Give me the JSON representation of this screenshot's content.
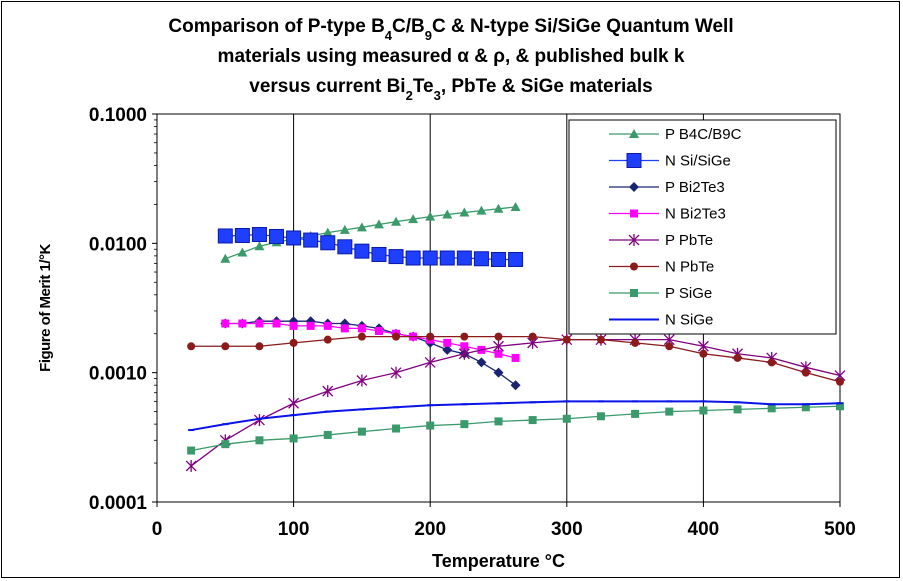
{
  "chart_data": {
    "type": "line",
    "title_lines": [
      "Comparison of P-type B4C/B9C & N-type Si/SiGe Quantum Well",
      "materials using measured α & ρ, & published bulk k",
      "versus current Bi2Te3, PbTe & SiGe materials"
    ],
    "xlabel": "Temperature °C",
    "ylabel": "Figure of Merit 1/°K",
    "xlim": [
      0,
      500
    ],
    "ylim": [
      0.0001,
      0.1
    ],
    "yscale": "log",
    "x_ticks": [
      "0",
      "100",
      "200",
      "300",
      "400",
      "500"
    ],
    "y_ticks": [
      "0.1000",
      "0.0100",
      "0.0010",
      "0.0001"
    ],
    "grid": "vertical",
    "legend_position": "top-right",
    "series": [
      {
        "name": "P B4C/B9C",
        "color": "#3a9a6a",
        "marker": "triangle",
        "x": [
          50,
          62.5,
          75,
          87.5,
          100,
          112.5,
          125,
          137.5,
          150,
          162.5,
          175,
          187.5,
          200,
          212.5,
          225,
          237.5,
          250,
          262.5
        ],
        "y": [
          0.0076,
          0.0085,
          0.0095,
          0.0102,
          0.0108,
          0.0114,
          0.0121,
          0.0127,
          0.0133,
          0.014,
          0.0147,
          0.0154,
          0.0161,
          0.0167,
          0.0173,
          0.0179,
          0.0185,
          0.0191
        ]
      },
      {
        "name": "N Si/SiGe",
        "color": "#1f3fff",
        "marker": "bigsquare",
        "x": [
          50,
          62.5,
          75,
          87.5,
          100,
          112.5,
          125,
          137.5,
          150,
          162.5,
          175,
          187.5,
          200,
          212.5,
          225,
          237.5,
          250,
          262.5
        ],
        "y": [
          0.0114,
          0.0115,
          0.0117,
          0.0113,
          0.011,
          0.0106,
          0.0101,
          0.0094,
          0.0087,
          0.0082,
          0.0079,
          0.0077,
          0.0077,
          0.0077,
          0.0077,
          0.0076,
          0.0075,
          0.0075
        ]
      },
      {
        "name": "P Bi2Te3",
        "color": "#1a2470",
        "marker": "diamond",
        "x": [
          50,
          62.5,
          75,
          87.5,
          100,
          112.5,
          125,
          137.5,
          150,
          162.5,
          175,
          187.5,
          200,
          212.5,
          225,
          237.5,
          250,
          262.5
        ],
        "y": [
          0.0024,
          0.0024,
          0.0025,
          0.0025,
          0.0025,
          0.0025,
          0.0024,
          0.0024,
          0.0023,
          0.0022,
          0.002,
          0.0019,
          0.0017,
          0.0015,
          0.0014,
          0.0012,
          0.001,
          0.0008
        ]
      },
      {
        "name": "N Bi2Te3",
        "color": "#ff00ff",
        "marker": "square",
        "x": [
          50,
          62.5,
          75,
          87.5,
          100,
          112.5,
          125,
          137.5,
          150,
          162.5,
          175,
          187.5,
          200,
          212.5,
          225,
          237.5,
          250,
          262.5
        ],
        "y": [
          0.0024,
          0.0024,
          0.0024,
          0.0024,
          0.0023,
          0.0023,
          0.0023,
          0.0022,
          0.0022,
          0.0021,
          0.002,
          0.0019,
          0.0018,
          0.0017,
          0.0016,
          0.0015,
          0.0014,
          0.0013
        ]
      },
      {
        "name": "P PbTe",
        "color": "#800080",
        "marker": "star",
        "x": [
          25,
          50,
          75,
          100,
          125,
          150,
          175,
          200,
          225,
          250,
          275,
          300,
          325,
          350,
          375,
          400,
          425,
          450,
          475,
          500
        ],
        "y": [
          0.00019,
          0.0003,
          0.00043,
          0.00058,
          0.00072,
          0.00087,
          0.001,
          0.0012,
          0.0014,
          0.0016,
          0.0017,
          0.0018,
          0.0018,
          0.0018,
          0.0018,
          0.0016,
          0.0014,
          0.0013,
          0.0011,
          0.00095
        ]
      },
      {
        "name": "N PbTe",
        "color": "#8b1a1a",
        "marker": "circle",
        "x": [
          25,
          50,
          75,
          100,
          125,
          150,
          175,
          200,
          225,
          250,
          275,
          300,
          325,
          350,
          375,
          400,
          425,
          450,
          475,
          500
        ],
        "y": [
          0.0016,
          0.0016,
          0.0016,
          0.0017,
          0.0018,
          0.0019,
          0.0019,
          0.0019,
          0.0019,
          0.0019,
          0.0019,
          0.0018,
          0.0018,
          0.0017,
          0.0016,
          0.0014,
          0.0013,
          0.0012,
          0.001,
          0.00085
        ]
      },
      {
        "name": "P SiGe",
        "color": "#3a9a6a",
        "marker": "square",
        "x": [
          25,
          50,
          75,
          100,
          125,
          150,
          175,
          200,
          225,
          250,
          275,
          300,
          325,
          350,
          375,
          400,
          425,
          450,
          475,
          500
        ],
        "y": [
          0.00025,
          0.00028,
          0.0003,
          0.00031,
          0.00033,
          0.00035,
          0.00037,
          0.00039,
          0.0004,
          0.00042,
          0.00043,
          0.00044,
          0.00046,
          0.00048,
          0.0005,
          0.00051,
          0.00052,
          0.00053,
          0.00054,
          0.00055
        ]
      },
      {
        "name": "N SiGe",
        "color": "#0a14e8",
        "marker": "dash",
        "x": [
          25,
          50,
          75,
          100,
          125,
          150,
          175,
          200,
          225,
          250,
          275,
          300,
          325,
          350,
          375,
          400,
          425,
          450,
          475,
          500
        ],
        "y": [
          0.00036,
          0.0004,
          0.00044,
          0.00047,
          0.0005,
          0.00052,
          0.00054,
          0.00056,
          0.00057,
          0.00058,
          0.00059,
          0.0006,
          0.0006,
          0.0006,
          0.0006,
          0.0006,
          0.00059,
          0.00057,
          0.00057,
          0.00058
        ]
      }
    ]
  }
}
